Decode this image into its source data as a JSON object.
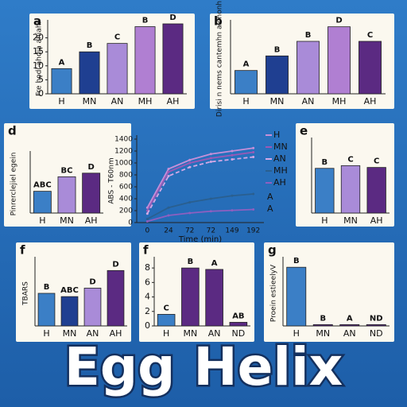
{
  "title": "Egg Helix",
  "chart_data": [
    {
      "type": "bar",
      "panel": "a",
      "ylabel": "Fre hodi ahdia ahiahi",
      "categories": [
        "H",
        "MN",
        "AN",
        "MH",
        "AH"
      ],
      "values": [
        9,
        15,
        18,
        24,
        25
      ],
      "letters": [
        "A",
        "B",
        "C",
        "B",
        "D"
      ],
      "colors": [
        "#3b7fc6",
        "#1f3f91",
        "#a98bd8",
        "#b07fd2",
        "#5b2a82"
      ],
      "ylim": [
        0,
        25
      ],
      "yticks": [
        0,
        5,
        10,
        15,
        20
      ]
    },
    {
      "type": "bar",
      "panel": "b",
      "ylabel": "Dirisi n nems cantemhn alohonh",
      "categories": [
        "H",
        "MN",
        "AN",
        "MH",
        "AH"
      ],
      "values": [
        4,
        6.5,
        9,
        11.5,
        9
      ],
      "letters": [
        "A",
        "B",
        "B",
        "D",
        "C"
      ],
      "colors": [
        "#3b7fc6",
        "#1f3f91",
        "#a98bd8",
        "#b07fd2",
        "#5b2a82"
      ],
      "ylim": [
        0,
        12
      ]
    },
    {
      "type": "bar",
      "panel": "d",
      "ylabel": "Pinrerclejiel egein",
      "categories": [
        "H",
        "MN",
        "AH"
      ],
      "values": [
        3,
        5,
        5.5
      ],
      "letters": [
        "ABC",
        "BC",
        "D"
      ],
      "colors": [
        "#3b7fc6",
        "#a98bd8",
        "#5b2a82"
      ],
      "ylim": [
        0,
        8
      ]
    },
    {
      "type": "line",
      "ylabel": "ABS - T60nm",
      "xlabel": "Time (min)",
      "categories": [
        "0",
        "24",
        "72",
        "72",
        "149",
        "192"
      ],
      "series": [
        {
          "name": "H",
          "color": "#c58fd8",
          "values": [
            250,
            900,
            1050,
            1150,
            1200,
            1250
          ]
        },
        {
          "name": "MN",
          "color": "#9b59b6",
          "values": [
            200,
            850,
            1000,
            1080,
            1130,
            1180
          ]
        },
        {
          "name": "AN",
          "color": "#d4a8e6",
          "values": [
            150,
            780,
            930,
            1020,
            1060,
            1100
          ]
        },
        {
          "name": "MH",
          "color": "#2a5f8f",
          "values": [
            60,
            250,
            340,
            400,
            450,
            480
          ]
        },
        {
          "name": "AH",
          "color": "#8e5fc0",
          "values": [
            20,
            120,
            160,
            190,
            205,
            220
          ]
        }
      ],
      "annotations": [
        "A",
        "A"
      ],
      "ylim": [
        0,
        1400
      ],
      "yticks": [
        0,
        200,
        400,
        600,
        800,
        1000,
        1200,
        1400
      ]
    },
    {
      "type": "bar",
      "panel": "e",
      "categories": [
        "H",
        "MN",
        "AH"
      ],
      "values": [
        5,
        5.3,
        5.1
      ],
      "letters": [
        "B",
        "C",
        "C"
      ],
      "colors": [
        "#3b7fc6",
        "#a98bd8",
        "#5b2a82"
      ],
      "ylim": [
        0,
        8
      ]
    },
    {
      "type": "bar",
      "panel": "f",
      "ylabel": "TBARS",
      "categories": [
        "H",
        "MN",
        "AN",
        "AH"
      ],
      "values": [
        5,
        4.5,
        5.8,
        8.5
      ],
      "letters": [
        "B",
        "ABC",
        "D",
        "D"
      ],
      "colors": [
        "#3b7fc6",
        "#1f3f91",
        "#a98bd8",
        "#5b2a82"
      ],
      "ylim": [
        0,
        10
      ]
    },
    {
      "type": "bar",
      "panel": "f",
      "categories": [
        "H",
        "MN",
        "AN",
        "ND"
      ],
      "values": [
        1.6,
        8,
        7.8,
        0.5
      ],
      "letters": [
        "C",
        "B",
        "A",
        "AB"
      ],
      "colors": [
        "#3b7fc6",
        "#5b2a82",
        "#5b2a82",
        "#5b2a82"
      ],
      "ylim": [
        0,
        9
      ],
      "yticks": [
        0,
        2,
        4,
        6,
        8
      ]
    },
    {
      "type": "bar",
      "panel": "g",
      "ylabel": "Proein estieelyV",
      "categories": [
        "H",
        "MN",
        "AN",
        "ND"
      ],
      "values": [
        4.5,
        0.1,
        0.1,
        0.1
      ],
      "letters": [
        "B",
        "B",
        "A",
        "ND"
      ],
      "colors": [
        "#3b7fc6",
        "#5b2a82",
        "#5b2a82",
        "#5b2a82"
      ],
      "ylim": [
        0,
        5
      ]
    }
  ]
}
